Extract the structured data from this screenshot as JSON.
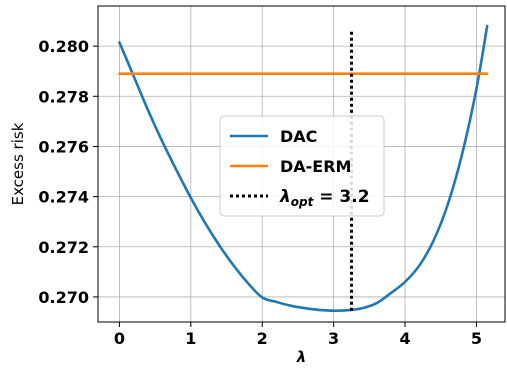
{
  "chart_data": {
    "type": "line",
    "title": "",
    "xlabel": "λ",
    "ylabel": "Excess risk",
    "xlim": [
      -0.3,
      5.4
    ],
    "ylim": [
      0.269,
      0.2816
    ],
    "xticks": [
      0,
      1,
      2,
      3,
      4,
      5
    ],
    "xtick_labels": [
      "0",
      "1",
      "2",
      "3",
      "4",
      "5"
    ],
    "yticks": [
      0.27,
      0.272,
      0.274,
      0.276,
      0.278,
      0.28
    ],
    "ytick_labels": [
      "0.270",
      "0.272",
      "0.274",
      "0.276",
      "0.278",
      "0.280"
    ],
    "grid": true,
    "legend_position": "center-right",
    "series": [
      {
        "name": "DAC",
        "color": "#1f77b4",
        "style": "solid",
        "x": [
          0.0,
          0.2,
          0.4,
          0.6,
          0.8,
          1.0,
          1.2,
          1.4,
          1.6,
          1.8,
          2.0,
          2.2,
          2.4,
          2.6,
          2.8,
          3.0,
          3.2,
          3.4,
          3.6,
          3.8,
          4.0,
          4.2,
          4.4,
          4.6,
          4.8,
          5.0,
          5.15
        ],
        "y": [
          0.28015,
          0.2788,
          0.27745,
          0.2762,
          0.27505,
          0.27395,
          0.27295,
          0.27205,
          0.27125,
          0.27055,
          0.26998,
          0.2698,
          0.26965,
          0.26955,
          0.26948,
          0.26945,
          0.26947,
          0.26955,
          0.26975,
          0.27015,
          0.2706,
          0.27125,
          0.27225,
          0.2737,
          0.2757,
          0.2783,
          0.2808
        ]
      },
      {
        "name": "DA-ERM",
        "color": "#ff7f0e",
        "style": "solid",
        "x": [
          0.0,
          5.15
        ],
        "y": [
          0.2789,
          0.2789
        ]
      },
      {
        "name": "λopt = 3.2",
        "color": "#000000",
        "style": "dotted",
        "x": [
          3.25,
          3.25
        ],
        "y": [
          0.26945,
          0.28065
        ]
      }
    ],
    "legend": {
      "entries": [
        {
          "label": "DAC",
          "color": "#1f77b4",
          "style": "solid"
        },
        {
          "label": "DA-ERM",
          "color": "#ff7f0e",
          "style": "solid"
        },
        {
          "label_main": "λ",
          "label_sub": "opt",
          "label_rest": " = 3.2",
          "color": "#000000",
          "style": "dotted"
        }
      ]
    }
  }
}
